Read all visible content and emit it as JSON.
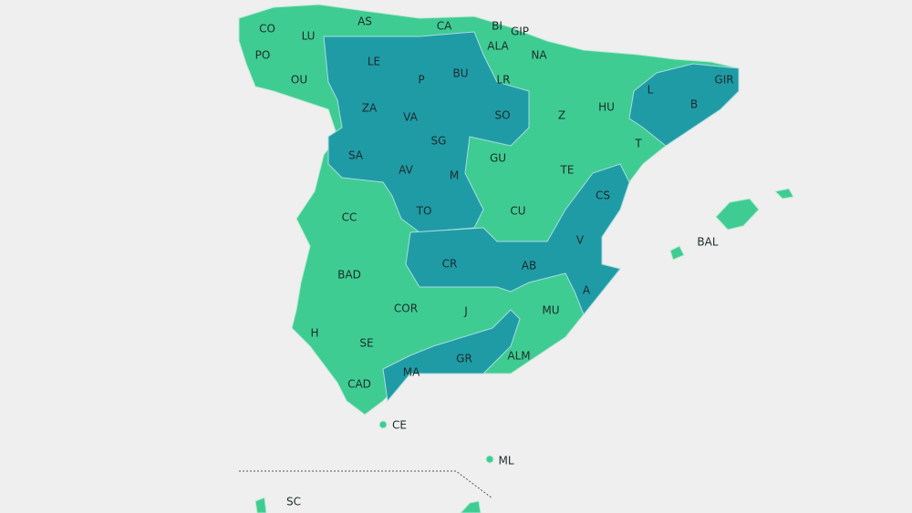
{
  "labels": [
    "CO",
    "LU",
    "AS",
    "CA",
    "BI",
    "GIP",
    "ALA",
    "NA",
    "LE",
    "P",
    "BU",
    "LR",
    "HU",
    "OU",
    "PO",
    "GIR",
    "L",
    "B",
    "ZA",
    "VA",
    "SO",
    "Z",
    "SG",
    "T",
    "SA",
    "AV",
    "M",
    "GU",
    "TE",
    "CS",
    "CC",
    "TO",
    "CU",
    "V",
    "BAL",
    "CR",
    "AB",
    "BAD",
    "A",
    "COR",
    "J",
    "MU",
    "H",
    "SE",
    "ALM",
    "GR",
    "MA",
    "CAD",
    "CE",
    "ML",
    "SC"
  ]
}
